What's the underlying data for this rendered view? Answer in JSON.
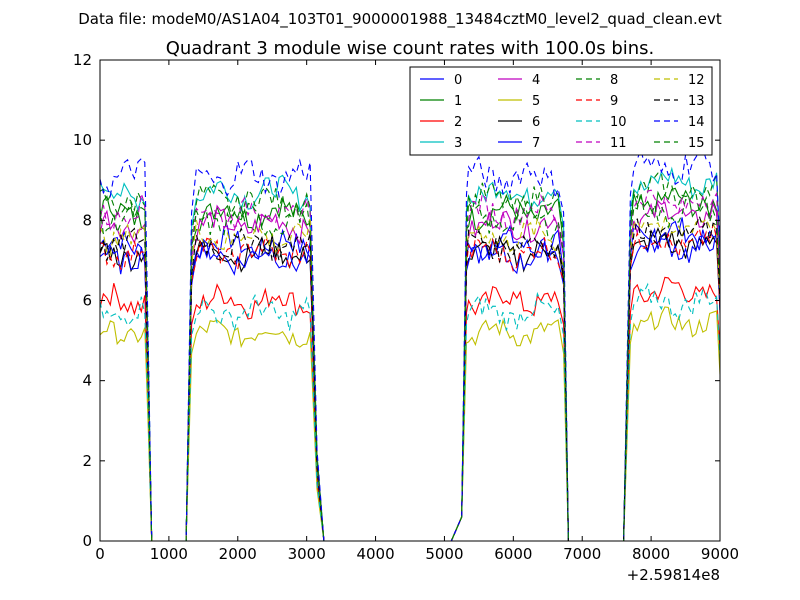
{
  "header": {
    "data_file_label": "Data file: modeM0/AS1A04_103T01_9000001988_13484cztM0_level2_quad_clean.evt",
    "title": "Quadrant 3 module wise count rates with 100.0s bins."
  },
  "chart_data": {
    "type": "line",
    "title": "Quadrant 3 module wise count rates with 100.0s bins.",
    "xlabel": "",
    "ylabel": "",
    "x_offset_label": "+2.59814e8",
    "xlim": [
      0,
      9000
    ],
    "ylim": [
      0,
      12
    ],
    "xticks": [
      0,
      1000,
      2000,
      3000,
      4000,
      5000,
      6000,
      7000,
      8000,
      9000
    ],
    "yticks": [
      0,
      2,
      4,
      6,
      8,
      10,
      12
    ],
    "grid": false,
    "legend_position": "top-right",
    "segments": [
      {
        "start": 50,
        "end": 650
      },
      {
        "start": 1400,
        "end": 3050
      },
      {
        "start": 5350,
        "end": 6650
      },
      {
        "start": 7750,
        "end": 8950
      }
    ],
    "dead_zero_ranges": [
      [
        720,
        1230
      ],
      [
        3260,
        5080
      ],
      [
        6810,
        7560
      ]
    ],
    "series": [
      {
        "name": "0",
        "color": "#0000ff",
        "dash": "solid",
        "base": 7.4,
        "amp": 0.3
      },
      {
        "name": "1",
        "color": "#008000",
        "dash": "solid",
        "base": 8.2,
        "amp": 0.3
      },
      {
        "name": "2",
        "color": "#ff0000",
        "dash": "solid",
        "base": 6.0,
        "amp": 0.3
      },
      {
        "name": "3",
        "color": "#00bfbf",
        "dash": "solid",
        "base": 8.7,
        "amp": 0.3
      },
      {
        "name": "4",
        "color": "#bf00bf",
        "dash": "solid",
        "base": 7.9,
        "amp": 0.3
      },
      {
        "name": "5",
        "color": "#bfbf00",
        "dash": "solid",
        "base": 5.2,
        "amp": 0.25
      },
      {
        "name": "6",
        "color": "#000000",
        "dash": "solid",
        "base": 7.2,
        "amp": 0.3
      },
      {
        "name": "7",
        "color": "#0000ff",
        "dash": "solid",
        "base": 7.1,
        "amp": 0.3
      },
      {
        "name": "8",
        "color": "#008000",
        "dash": "dashed",
        "base": 8.5,
        "amp": 0.3
      },
      {
        "name": "9",
        "color": "#ff0000",
        "dash": "dashed",
        "base": 7.2,
        "amp": 0.3
      },
      {
        "name": "10",
        "color": "#00bfbf",
        "dash": "dashed",
        "base": 5.7,
        "amp": 0.3
      },
      {
        "name": "11",
        "color": "#bf00bf",
        "dash": "dashed",
        "base": 8.2,
        "amp": 0.3
      },
      {
        "name": "12",
        "color": "#bfbf00",
        "dash": "dashed",
        "base": 7.6,
        "amp": 0.3
      },
      {
        "name": "13",
        "color": "#000000",
        "dash": "dashed",
        "base": 7.4,
        "amp": 0.3
      },
      {
        "name": "14",
        "color": "#0000ff",
        "dash": "dashed",
        "base": 9.1,
        "amp": 0.35
      },
      {
        "name": "15",
        "color": "#008000",
        "dash": "dashed",
        "base": 8.0,
        "amp": 0.3
      }
    ]
  }
}
